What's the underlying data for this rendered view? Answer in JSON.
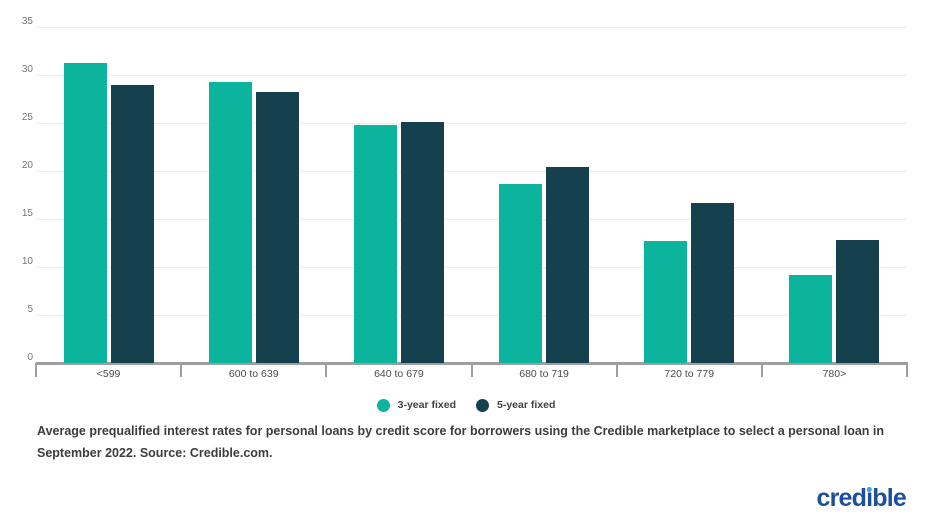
{
  "chart_data": {
    "type": "bar",
    "title": "",
    "categories": [
      "<599",
      "600 to 639",
      "640 to 679",
      "680 to 719",
      "720 to 779",
      "780>"
    ],
    "series": [
      {
        "name": "3-year fixed",
        "color": "#0db49d",
        "values": [
          31.2,
          29.3,
          24.8,
          18.6,
          12.7,
          9.2
        ]
      },
      {
        "name": "5-year fixed",
        "color": "#15414f",
        "values": [
          29.0,
          28.2,
          25.1,
          20.4,
          16.7,
          12.8
        ]
      }
    ],
    "xlabel": "",
    "ylabel": "",
    "ylim": [
      0,
      35
    ],
    "yticks": [
      0,
      5,
      10,
      15,
      20,
      25,
      30,
      35
    ],
    "grid": "horizontal",
    "legend_position": "bottom-center"
  },
  "caption": {
    "lines": [
      "Average prequalified interest rates for personal loans by credit score for borrowers using the Credible marketplace to select a personal loan in",
      "September 2022. Source: Credible.com."
    ]
  },
  "logo": {
    "pre": "cred",
    "i": "ı",
    "post": "ble",
    "text_color": "#1d4f9b",
    "dot_color": "#4a9fdd"
  },
  "colors": {
    "bar_teal": "#0db49d",
    "bar_dark": "#15414f",
    "axis_line": "#9e9e9e",
    "gridline": "#ececec",
    "y_tick_label": "#757575",
    "x_tick_label": "#4a4a4a",
    "background": "#ffffff"
  }
}
